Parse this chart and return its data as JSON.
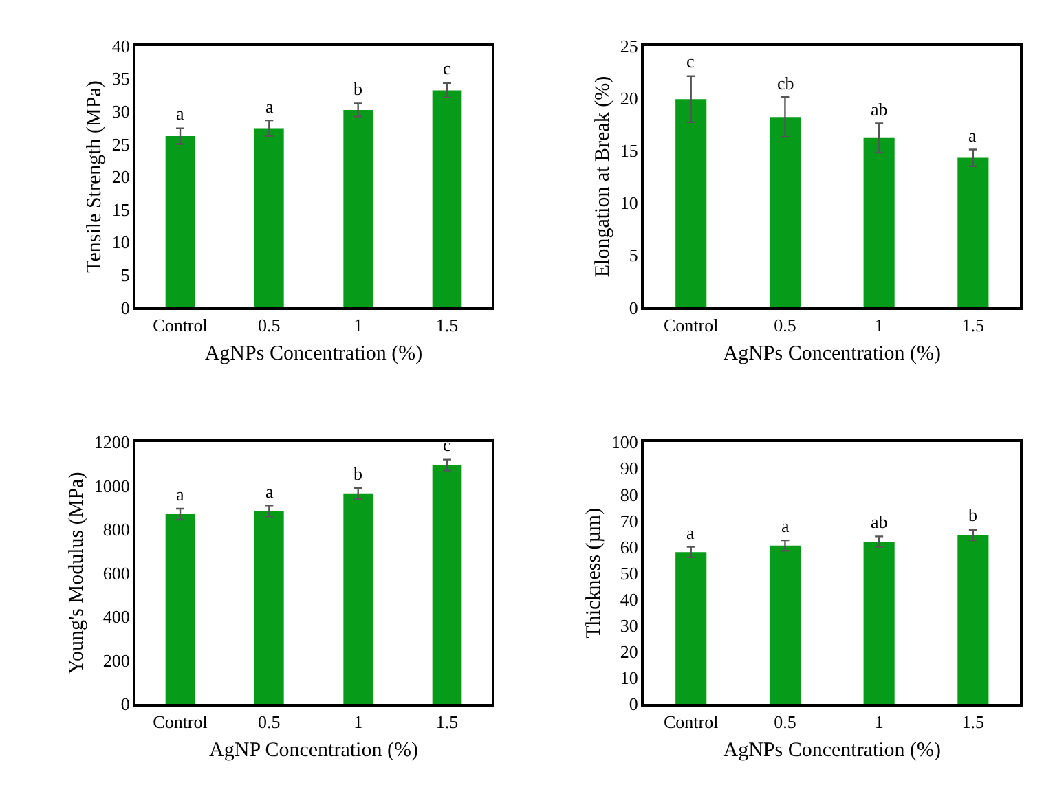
{
  "chart_data": [
    {
      "type": "bar",
      "ylabel": "Tensile Strength (MPa)",
      "xlabel": "AgNPs Concentration (%)",
      "categories": [
        "Control",
        "0.5",
        "1",
        "1.5"
      ],
      "values": [
        26.2,
        27.4,
        30.2,
        33.2
      ],
      "errors": [
        1.2,
        1.2,
        1.0,
        1.1
      ],
      "color": "#069c1a",
      "ylim": [
        0,
        40
      ],
      "yticks": [
        0,
        5,
        10,
        15,
        20,
        25,
        30,
        35,
        40
      ],
      "annotations": [
        "a",
        "a",
        "b",
        "c"
      ]
    },
    {
      "type": "bar",
      "ylabel": "Elongation at Break (%)",
      "xlabel": "AgNPs Concentration (%)",
      "categories": [
        "Control",
        "0.5",
        "1",
        "1.5"
      ],
      "values": [
        19.9,
        18.2,
        16.2,
        14.3
      ],
      "errors": [
        2.2,
        1.9,
        1.4,
        0.8
      ],
      "color": "#069c1a",
      "ylim": [
        0,
        25
      ],
      "yticks": [
        0,
        5,
        10,
        15,
        20,
        25
      ],
      "annotations": [
        "c",
        "cb",
        "ab",
        "a"
      ]
    },
    {
      "type": "bar",
      "ylabel": "Young's Modulus (MPa)",
      "xlabel": "AgNP Concentration (%)",
      "categories": [
        "Control",
        "0.5",
        "1",
        "1.5"
      ],
      "values": [
        870,
        885,
        965,
        1095
      ],
      "errors": [
        25,
        25,
        25,
        25
      ],
      "color": "#069c1a",
      "ylim": [
        0,
        1200
      ],
      "yticks": [
        0,
        200,
        400,
        600,
        800,
        1000,
        1200
      ],
      "annotations": [
        "a",
        "a",
        "b",
        "c"
      ]
    },
    {
      "type": "bar",
      "ylabel": "Thickness (µm)",
      "xlabel": "AgNPs Concentration (%)",
      "categories": [
        "Control",
        "0.5",
        "1",
        "1.5"
      ],
      "values": [
        58,
        60.5,
        62,
        64.5
      ],
      "errors": [
        2,
        2,
        2,
        2
      ],
      "color": "#069c1a",
      "ylim": [
        0,
        100
      ],
      "yticks": [
        0,
        10,
        20,
        30,
        40,
        50,
        60,
        70,
        80,
        90,
        100
      ],
      "annotations": [
        "a",
        "a",
        "ab",
        "b"
      ]
    }
  ]
}
